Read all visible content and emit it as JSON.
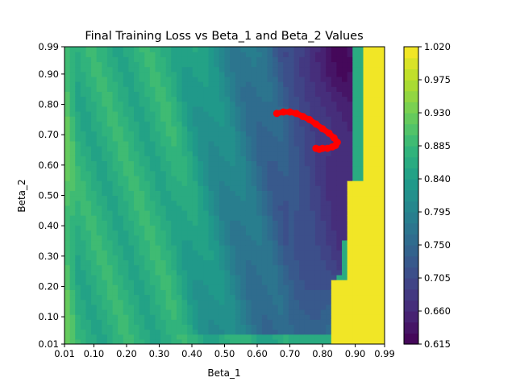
{
  "chart_data": {
    "type": "heatmap",
    "title": "Final Training Loss vs Beta_1 and Beta_2 Values",
    "xlabel": "Beta_1",
    "ylabel": "Beta_2",
    "xlim": [
      0.01,
      0.99
    ],
    "ylim": [
      0.01,
      0.99
    ],
    "x_ticks": [
      "0.01",
      "0.10",
      "0.20",
      "0.30",
      "0.40",
      "0.50",
      "0.60",
      "0.70",
      "0.80",
      "0.90",
      "0.99"
    ],
    "y_ticks": [
      "0.01",
      "0.10",
      "0.20",
      "0.30",
      "0.40",
      "0.50",
      "0.60",
      "0.70",
      "0.80",
      "0.90",
      "0.99"
    ],
    "colorbar": {
      "min": 0.615,
      "max": 1.02,
      "ticks": [
        "0.615",
        "0.660",
        "0.705",
        "0.750",
        "0.795",
        "0.840",
        "0.885",
        "0.930",
        "0.975",
        "1.020"
      ],
      "colormap": "viridis"
    },
    "contour_levels": 27,
    "surface_description_values": {
      "min_region": {
        "beta_1": 0.82,
        "beta_2": 0.95,
        "loss": 0.62
      },
      "low_edge_loss": 0.86,
      "high_beta1_loss": 1.02
    },
    "optimizer_path": {
      "color": "#ff0000",
      "points": [
        [
          0.66,
          0.77
        ],
        [
          0.68,
          0.775
        ],
        [
          0.7,
          0.775
        ],
        [
          0.72,
          0.77
        ],
        [
          0.74,
          0.76
        ],
        [
          0.76,
          0.75
        ],
        [
          0.78,
          0.735
        ],
        [
          0.8,
          0.72
        ],
        [
          0.82,
          0.705
        ],
        [
          0.835,
          0.69
        ],
        [
          0.845,
          0.675
        ],
        [
          0.84,
          0.665
        ],
        [
          0.83,
          0.66
        ],
        [
          0.815,
          0.655
        ],
        [
          0.8,
          0.655
        ],
        [
          0.79,
          0.652
        ],
        [
          0.78,
          0.655
        ]
      ]
    }
  }
}
